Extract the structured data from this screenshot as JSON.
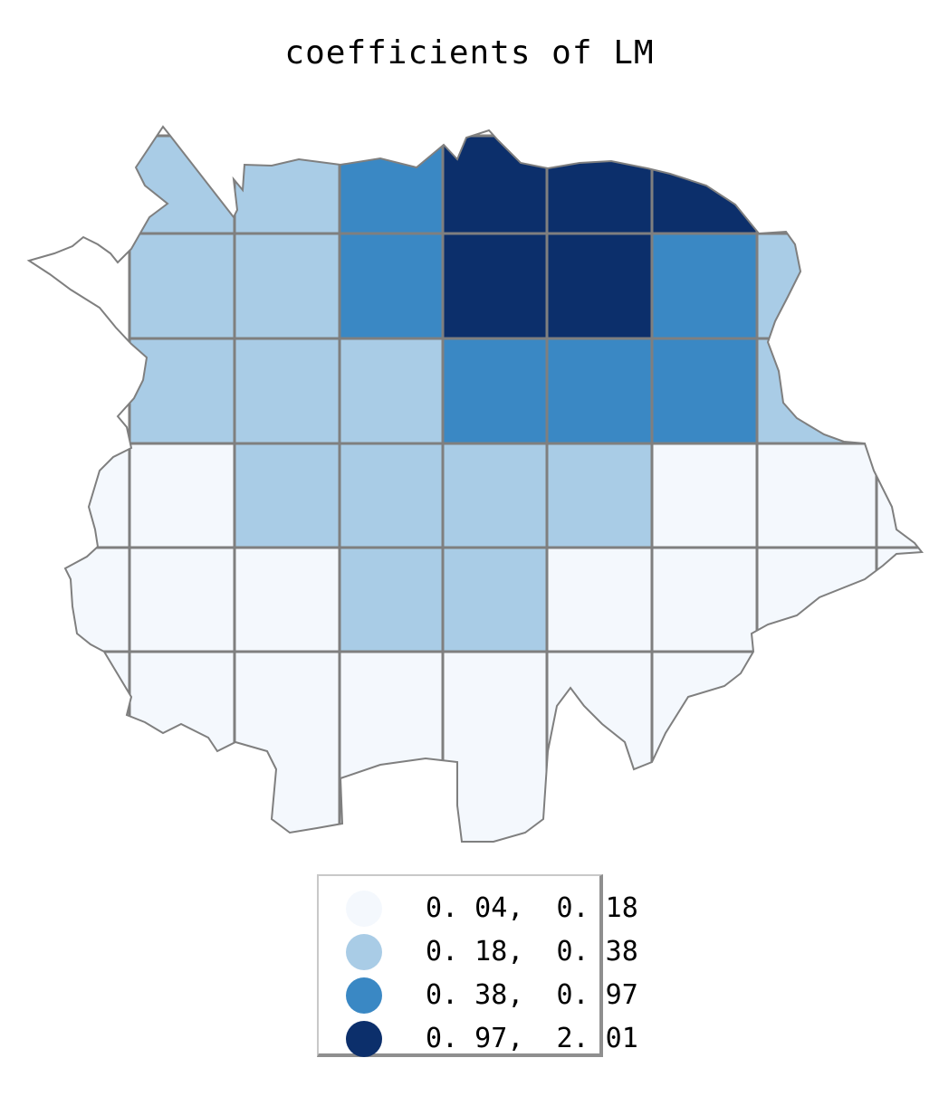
{
  "title": "coefficients of LM",
  "colors": {
    "class1": "#f4f8fd",
    "class2": "#a9cce6",
    "class3": "#3a88c4",
    "class4": "#0c2f6b",
    "grid_line": "#7f7f7f"
  },
  "legend": {
    "items": [
      {
        "label": "0. 04,  0. 18",
        "class": 1
      },
      {
        "label": "0. 18,  0. 38",
        "class": 2
      },
      {
        "label": "0. 38,  0. 97",
        "class": 3
      },
      {
        "label": "0. 97,  2. 01",
        "class": 4
      }
    ]
  },
  "grid": {
    "rows": [
      [
        2,
        2,
        3,
        4,
        4,
        4,
        3
      ],
      [
        2,
        2,
        3,
        4,
        4,
        3,
        2,
        2
      ],
      [
        2,
        2,
        2,
        3,
        3,
        3,
        2
      ],
      [
        1,
        1,
        2,
        2,
        2,
        2,
        1,
        1,
        1
      ],
      [
        1,
        1,
        1,
        2,
        2,
        1,
        1,
        1,
        1
      ],
      [
        1,
        1,
        1,
        1,
        1,
        1,
        1,
        1
      ],
      [
        1,
        1,
        1
      ]
    ]
  }
}
